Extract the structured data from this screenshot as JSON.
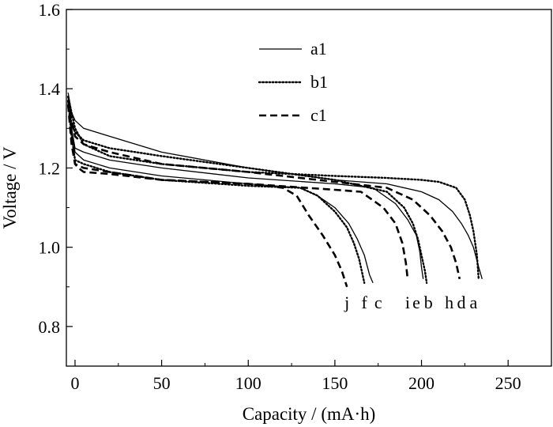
{
  "chart_data": {
    "type": "line",
    "title": "",
    "xlabel": "Capacity / (mA·h)",
    "ylabel": "Voltage / V",
    "xlim": [
      -5,
      275
    ],
    "ylim": [
      0.7,
      1.6
    ],
    "xticks": [
      0,
      50,
      100,
      150,
      200,
      250
    ],
    "yticks": [
      0.8,
      1.0,
      1.2,
      1.4,
      1.6
    ],
    "xtick_labels": [
      "0",
      "50",
      "100",
      "150",
      "200",
      "250"
    ],
    "ytick_labels": [
      "0.8",
      "1.0",
      "1.2",
      "1.4",
      "1.6"
    ],
    "grid": false,
    "legend": {
      "position": "top-center",
      "entries": [
        {
          "label": "a1",
          "style": "solid"
        },
        {
          "label": "b1",
          "style": "dotted"
        },
        {
          "label": "c1",
          "style": "dashed"
        }
      ]
    },
    "series": [
      {
        "label": "a",
        "style": "solid",
        "x": [
          -4,
          -2,
          0,
          5,
          20,
          50,
          100,
          150,
          180,
          200,
          210,
          218,
          223,
          227,
          230,
          233,
          235
        ],
        "y": [
          1.39,
          1.34,
          1.32,
          1.3,
          1.28,
          1.24,
          1.2,
          1.17,
          1.16,
          1.14,
          1.12,
          1.09,
          1.06,
          1.03,
          1.0,
          0.95,
          0.92
        ]
      },
      {
        "label": "b",
        "style": "dotted",
        "x": [
          -4,
          -2,
          0,
          5,
          20,
          50,
          100,
          150,
          180,
          190,
          195,
          198,
          200,
          202,
          203
        ],
        "y": [
          1.37,
          1.31,
          1.29,
          1.27,
          1.25,
          1.23,
          1.2,
          1.17,
          1.14,
          1.1,
          1.06,
          1.02,
          0.98,
          0.94,
          0.91
        ]
      },
      {
        "label": "c",
        "style": "solid",
        "x": [
          -4,
          -2,
          0,
          5,
          20,
          50,
          100,
          130,
          140,
          150,
          158,
          163,
          167,
          170,
          172
        ],
        "y": [
          1.38,
          1.3,
          1.24,
          1.22,
          1.2,
          1.18,
          1.16,
          1.15,
          1.13,
          1.1,
          1.06,
          1.02,
          0.98,
          0.93,
          0.91
        ]
      },
      {
        "label": "d",
        "style": "dotted",
        "x": [
          -4,
          -2,
          0,
          5,
          20,
          50,
          100,
          150,
          180,
          200,
          210,
          220,
          225,
          228,
          230,
          232,
          233
        ],
        "y": [
          1.38,
          1.34,
          1.3,
          1.26,
          1.23,
          1.21,
          1.19,
          1.18,
          1.175,
          1.17,
          1.165,
          1.15,
          1.12,
          1.08,
          1.04,
          0.98,
          0.92
        ]
      },
      {
        "label": "e",
        "style": "solid",
        "x": [
          -4,
          -2,
          0,
          5,
          20,
          50,
          100,
          150,
          172,
          185,
          192,
          197,
          199,
          200,
          201
        ],
        "y": [
          1.38,
          1.3,
          1.25,
          1.24,
          1.22,
          1.2,
          1.175,
          1.16,
          1.15,
          1.11,
          1.07,
          1.03,
          0.99,
          0.95,
          0.92
        ]
      },
      {
        "label": "f",
        "style": "dotted",
        "x": [
          -4,
          -2,
          0,
          5,
          20,
          50,
          100,
          130,
          140,
          150,
          157,
          161,
          164,
          166,
          167
        ],
        "y": [
          1.37,
          1.28,
          1.22,
          1.21,
          1.19,
          1.17,
          1.155,
          1.15,
          1.13,
          1.09,
          1.05,
          1.01,
          0.97,
          0.93,
          0.91
        ]
      },
      {
        "label": "h",
        "style": "dashed",
        "x": [
          -4,
          -2,
          0,
          5,
          20,
          50,
          100,
          150,
          180,
          195,
          205,
          212,
          217,
          220,
          222
        ],
        "y": [
          1.37,
          1.32,
          1.28,
          1.26,
          1.24,
          1.21,
          1.19,
          1.165,
          1.15,
          1.12,
          1.08,
          1.04,
          1.0,
          0.96,
          0.92
        ]
      },
      {
        "label": "i",
        "style": "dashed",
        "x": [
          -4,
          -2,
          0,
          5,
          20,
          50,
          100,
          150,
          165,
          178,
          185,
          189,
          191,
          192
        ],
        "y": [
          1.36,
          1.26,
          1.21,
          1.2,
          1.19,
          1.17,
          1.16,
          1.145,
          1.14,
          1.1,
          1.06,
          1.01,
          0.96,
          0.92
        ]
      },
      {
        "label": "j",
        "style": "dashed",
        "x": [
          -4,
          -2,
          0,
          2,
          5,
          20,
          50,
          100,
          120,
          128,
          135,
          143,
          150,
          154,
          157
        ],
        "y": [
          1.36,
          1.28,
          1.21,
          1.2,
          1.19,
          1.185,
          1.17,
          1.16,
          1.15,
          1.13,
          1.08,
          1.03,
          0.98,
          0.94,
          0.9
        ]
      }
    ],
    "curve_labels": [
      {
        "text": "j",
        "x": 157
      },
      {
        "text": "f",
        "x": 167
      },
      {
        "text": "c",
        "x": 175
      },
      {
        "text": "i",
        "x": 192
      },
      {
        "text": "e",
        "x": 197
      },
      {
        "text": "b",
        "x": 204
      },
      {
        "text": "h",
        "x": 216
      },
      {
        "text": "d",
        "x": 223
      },
      {
        "text": "a",
        "x": 230
      }
    ]
  }
}
